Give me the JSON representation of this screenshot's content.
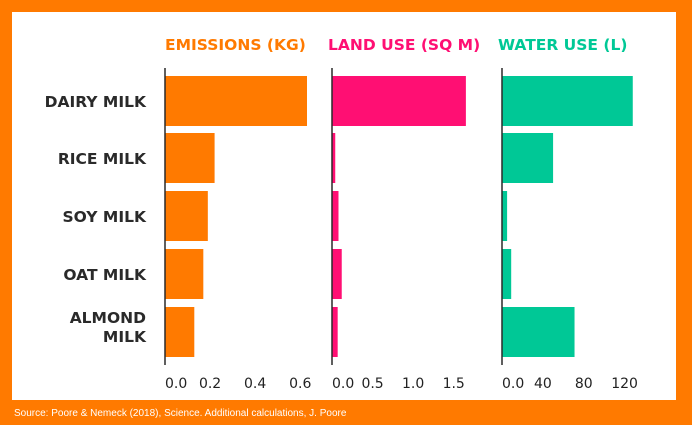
{
  "chart_data": {
    "type": "bar",
    "orientation": "horizontal",
    "categories": [
      [
        "DAIRY MILK"
      ],
      [
        "RICE MILK"
      ],
      [
        "SOY MILK"
      ],
      [
        "OAT MILK"
      ],
      [
        "ALMOND",
        "MILK"
      ]
    ],
    "panels": [
      {
        "title": "EMISSIONS (KG)",
        "color": "#ff7a00",
        "values": [
          0.63,
          0.22,
          0.19,
          0.17,
          0.13
        ],
        "xlim": [
          0,
          0.63
        ],
        "ticks": [
          0.0,
          0.2,
          0.4,
          0.6
        ],
        "tick_labels": [
          "0.0",
          "0.2",
          "0.4",
          "0.6"
        ]
      },
      {
        "title": "LAND USE (SQ M)",
        "color": "#ff0f73",
        "values": [
          1.65,
          0.04,
          0.08,
          0.12,
          0.07
        ],
        "xlim": [
          0,
          1.75
        ],
        "ticks": [
          0.0,
          0.5,
          1.0,
          1.5
        ],
        "tick_labels": [
          "0.0",
          "0.5",
          "1.0",
          "1.5"
        ]
      },
      {
        "title": "WATER USE (L)",
        "color": "#00c896",
        "values": [
          128,
          50,
          5,
          9,
          71
        ],
        "xlim": [
          0,
          139
        ],
        "ticks": [
          0,
          40,
          80,
          120
        ],
        "tick_labels": [
          "0.0",
          "40",
          "80",
          "120"
        ]
      }
    ]
  },
  "source": "Source: Poore & Nemeck (2018), Science. Additional calculations, J. Poore"
}
